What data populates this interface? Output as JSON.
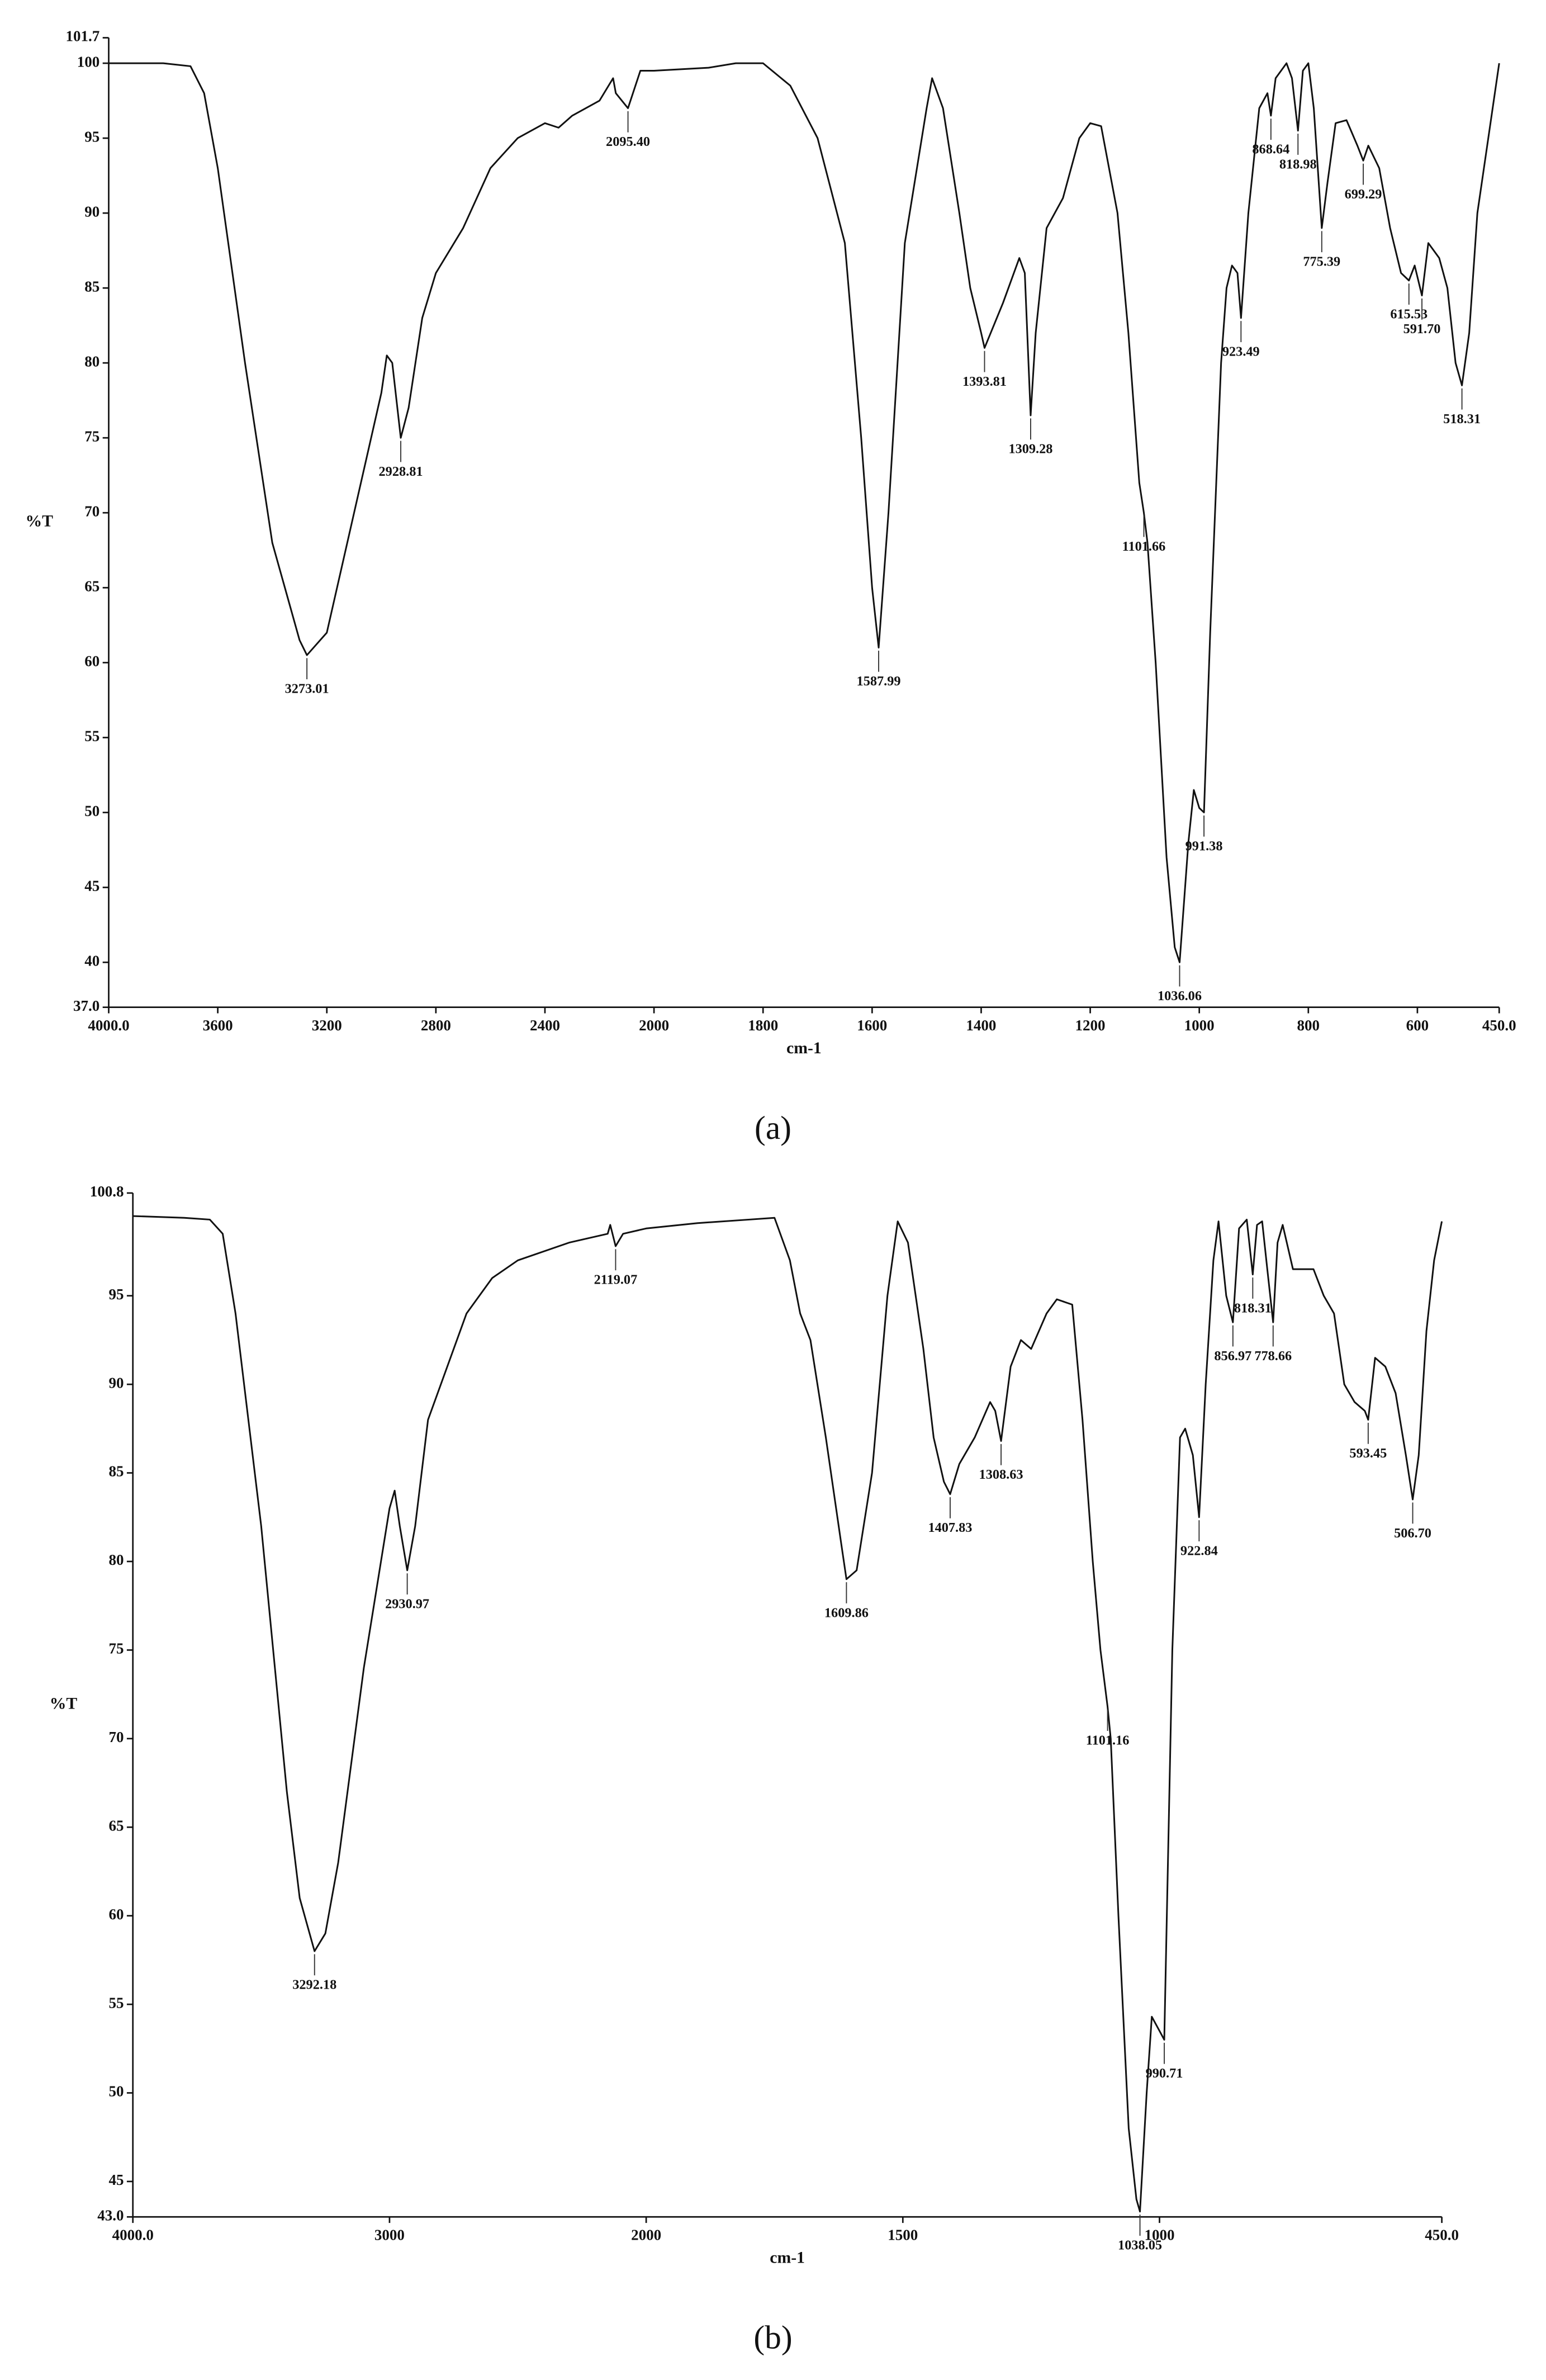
{
  "chart_data": [
    {
      "type": "line",
      "panel_label": "(a)",
      "x_label": "cm-1",
      "y_label": "%T",
      "color": "#111111",
      "xlim": [
        4000,
        450
      ],
      "x_scale_break": 2000,
      "x_scale_factor": 2,
      "xticks": [
        {
          "value": 4000,
          "label": "4000.0"
        },
        3600,
        3200,
        2800,
        2400,
        2000,
        1800,
        1600,
        1400,
        1200,
        1000,
        800,
        600,
        {
          "value": 450,
          "label": "450.0"
        }
      ],
      "ylim": [
        37,
        101.7
      ],
      "yticks": [
        {
          "value": 37,
          "label": "37.0"
        },
        40,
        45,
        50,
        55,
        60,
        65,
        70,
        75,
        80,
        85,
        90,
        95,
        100,
        101.7
      ],
      "x": [
        4000,
        3800,
        3700,
        3650,
        3600,
        3500,
        3400,
        3300,
        3273.01,
        3200,
        3100,
        3000,
        2980,
        2960,
        2928.81,
        2900,
        2850,
        2800,
        2700,
        2600,
        2500,
        2400,
        2350,
        2300,
        2200,
        2150,
        2140,
        2095.4,
        2050,
        2000,
        1900,
        1850,
        1800,
        1750,
        1700,
        1650,
        1620,
        1600,
        1587.99,
        1570,
        1540,
        1500,
        1490,
        1470,
        1440,
        1420,
        1400,
        1393.81,
        1360,
        1330,
        1320,
        1309.28,
        1300,
        1280,
        1250,
        1220,
        1200,
        1180,
        1150,
        1130,
        1110,
        1101.66,
        1095,
        1080,
        1060,
        1045,
        1036.06,
        1020,
        1010,
        1000,
        991.38,
        980,
        960,
        950,
        940,
        930,
        923.49,
        910,
        890,
        875,
        868.64,
        860,
        840,
        830,
        818.98,
        810,
        800,
        790,
        775.39,
        765,
        750,
        730,
        710,
        699.29,
        690,
        670,
        650,
        630,
        615.53,
        605,
        591.7,
        580,
        560,
        545,
        530,
        518.31,
        505,
        490,
        470,
        450
      ],
      "values": [
        100,
        100,
        99.8,
        98,
        93,
        80,
        68,
        61.5,
        60.5,
        62,
        70,
        78,
        80.5,
        80,
        75,
        77,
        83,
        86,
        89,
        93,
        95,
        96,
        95.7,
        96.5,
        97.5,
        99,
        98,
        97,
        99.5,
        99.5,
        99.7,
        100,
        100,
        98.5,
        95,
        88,
        75,
        65,
        61,
        70,
        88,
        97,
        99,
        97,
        90,
        85,
        82,
        81,
        84,
        87,
        86,
        76.5,
        82,
        89,
        91,
        95,
        96,
        95.8,
        90,
        82,
        72,
        70,
        68,
        60,
        47,
        41,
        40,
        48,
        51.5,
        50.3,
        50,
        62,
        80,
        85,
        86.5,
        86,
        83,
        90,
        97,
        98,
        96.5,
        99,
        100,
        99,
        95.5,
        99.5,
        100,
        97,
        89,
        92,
        96,
        96.2,
        94.5,
        93.5,
        94.5,
        93,
        89,
        86,
        85.5,
        86.5,
        84.5,
        88,
        87,
        85,
        80,
        78.5,
        82,
        90,
        95,
        100
      ],
      "peak_labels": [
        3273.01,
        2928.81,
        {
          "value": 2095.4,
          "label": "2095.40"
        },
        1587.99,
        1393.81,
        1309.28,
        1101.66,
        1036.06,
        991.38,
        923.49,
        868.64,
        818.98,
        775.39,
        699.29,
        615.53,
        {
          "value": 591.7,
          "label": "591.70"
        },
        518.31
      ]
    },
    {
      "type": "line",
      "panel_label": "(b)",
      "x_label": "cm-1",
      "y_label": "%T",
      "color": "#111111",
      "xlim": [
        4000,
        450
      ],
      "x_scale_break": 2000,
      "x_scale_factor": 2,
      "xticks": [
        {
          "value": 4000,
          "label": "4000.0"
        },
        3000,
        2000,
        1500,
        1000,
        {
          "value": 450,
          "label": "450.0"
        }
      ],
      "ylim": [
        43,
        100.8
      ],
      "yticks": [
        {
          "value": 43,
          "label": "43.0"
        },
        45,
        50,
        55,
        60,
        65,
        70,
        75,
        80,
        85,
        90,
        95,
        100.8
      ],
      "x": [
        4000,
        3800,
        3700,
        3650,
        3600,
        3500,
        3400,
        3350,
        3292.18,
        3250,
        3200,
        3100,
        3000,
        2980,
        2960,
        2930.97,
        2900,
        2850,
        2800,
        2700,
        2600,
        2500,
        2300,
        2150,
        2140,
        2119.07,
        2090,
        2000,
        1900,
        1800,
        1750,
        1720,
        1700,
        1680,
        1650,
        1620,
        1609.86,
        1590,
        1560,
        1530,
        1510,
        1490,
        1460,
        1440,
        1420,
        1407.83,
        1390,
        1360,
        1330,
        1320,
        1308.63,
        1290,
        1270,
        1250,
        1220,
        1200,
        1170,
        1150,
        1130,
        1115,
        1101.16,
        1095,
        1080,
        1060,
        1045,
        1038.05,
        1025,
        1015,
        1000,
        990.71,
        975,
        960,
        950,
        935,
        922.84,
        910,
        895,
        885,
        870,
        856.97,
        845,
        830,
        818.31,
        810,
        800,
        790,
        778.66,
        770,
        760,
        740,
        700,
        680,
        660,
        640,
        620,
        600,
        593.45,
        580,
        560,
        540,
        520,
        506.7,
        495,
        480,
        465,
        450
      ],
      "values": [
        99.5,
        99.4,
        99.3,
        98.5,
        94,
        82,
        67,
        61,
        58,
        59,
        63,
        74,
        83,
        84,
        82,
        79.5,
        82,
        88,
        90,
        94,
        96,
        97,
        98,
        98.5,
        99,
        97.8,
        98.5,
        98.8,
        99.1,
        99.3,
        99.4,
        97,
        94,
        92.5,
        87,
        81,
        79,
        79.5,
        85,
        95,
        99.2,
        98,
        92,
        87,
        84.5,
        83.8,
        85.5,
        87,
        89,
        88.5,
        86.8,
        91,
        92.5,
        92,
        94,
        94.8,
        94.5,
        88,
        80,
        75,
        71.8,
        70,
        60,
        48,
        44,
        43.3,
        50,
        54.3,
        53.5,
        53,
        75,
        87,
        87.5,
        86,
        82.5,
        90,
        97,
        99.2,
        95,
        93.5,
        98.8,
        99.3,
        96.2,
        99,
        99.2,
        96.5,
        93.5,
        98,
        99,
        96.5,
        96.5,
        95,
        94,
        90,
        89,
        88.5,
        88,
        91.5,
        91,
        89.5,
        86,
        83.5,
        86,
        93,
        97,
        99.2
      ],
      "peak_labels": [
        3292.18,
        2930.97,
        2119.07,
        1609.86,
        1407.83,
        1308.63,
        1101.16,
        1038.05,
        990.71,
        922.84,
        856.97,
        818.31,
        778.66,
        593.45,
        {
          "value": 506.7,
          "label": "506.70"
        }
      ]
    }
  ]
}
